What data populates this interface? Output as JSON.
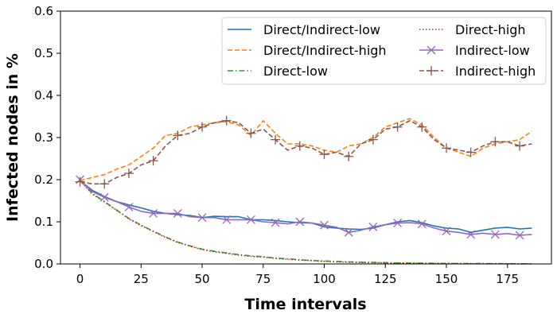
{
  "chart_data": {
    "type": "line",
    "title": "",
    "xlabel": "Time intervals",
    "ylabel": "Infected nodes in %",
    "xlim": [
      -8,
      193
    ],
    "ylim": [
      0,
      0.6
    ],
    "xticks": [
      0,
      25,
      50,
      75,
      100,
      125,
      150,
      175
    ],
    "yticks": [
      0.0,
      0.1,
      0.2,
      0.3,
      0.4,
      0.5,
      0.6
    ],
    "ytick_labels": [
      "0.0",
      "0.1",
      "0.2",
      "0.3",
      "0.4",
      "0.5",
      "0.6"
    ],
    "grid": false,
    "legend_placement": "upper-right",
    "legend_columns": 2,
    "series": [
      {
        "name": "Direct/Indirect-low",
        "color": "#1f77b4",
        "linestyle": "solid",
        "marker": "none",
        "x": [
          0,
          5,
          10,
          15,
          20,
          25,
          30,
          35,
          40,
          45,
          50,
          55,
          60,
          65,
          70,
          75,
          80,
          85,
          90,
          95,
          100,
          105,
          110,
          115,
          120,
          125,
          130,
          135,
          140,
          145,
          150,
          155,
          160,
          165,
          170,
          175,
          180,
          185
        ],
        "y": [
          0.198,
          0.175,
          0.16,
          0.148,
          0.14,
          0.133,
          0.125,
          0.12,
          0.117,
          0.115,
          0.11,
          0.113,
          0.112,
          0.112,
          0.105,
          0.105,
          0.103,
          0.1,
          0.098,
          0.097,
          0.088,
          0.085,
          0.083,
          0.082,
          0.085,
          0.093,
          0.1,
          0.103,
          0.098,
          0.09,
          0.085,
          0.083,
          0.075,
          0.08,
          0.085,
          0.087,
          0.083,
          0.085
        ]
      },
      {
        "name": "Direct/Indirect-high",
        "color": "#ff7f0e",
        "linestyle": "dashed",
        "marker": "none",
        "x": [
          0,
          5,
          10,
          15,
          20,
          25,
          30,
          35,
          40,
          45,
          50,
          55,
          60,
          65,
          70,
          75,
          80,
          85,
          90,
          95,
          100,
          105,
          110,
          115,
          120,
          125,
          130,
          135,
          140,
          145,
          150,
          155,
          160,
          165,
          170,
          175,
          180,
          185
        ],
        "y": [
          0.198,
          0.205,
          0.212,
          0.225,
          0.235,
          0.255,
          0.275,
          0.305,
          0.31,
          0.325,
          0.33,
          0.335,
          0.338,
          0.33,
          0.305,
          0.34,
          0.31,
          0.285,
          0.285,
          0.28,
          0.27,
          0.265,
          0.28,
          0.285,
          0.3,
          0.325,
          0.335,
          0.345,
          0.33,
          0.3,
          0.275,
          0.265,
          0.255,
          0.275,
          0.285,
          0.29,
          0.295,
          0.315
        ]
      },
      {
        "name": "Direct-low",
        "color": "#2ca02c",
        "linestyle": "dashdot",
        "marker": "none",
        "x": [
          0,
          5,
          10,
          15,
          20,
          25,
          30,
          35,
          40,
          45,
          50,
          55,
          60,
          65,
          70,
          75,
          80,
          85,
          90,
          95,
          100,
          105,
          110,
          115,
          120,
          125,
          130,
          135,
          140,
          145,
          150,
          155,
          160,
          165,
          170,
          175,
          180,
          185
        ],
        "y": [
          0.198,
          0.168,
          0.148,
          0.128,
          0.108,
          0.092,
          0.078,
          0.064,
          0.052,
          0.043,
          0.035,
          0.03,
          0.026,
          0.022,
          0.019,
          0.017,
          0.014,
          0.012,
          0.01,
          0.008,
          0.007,
          0.006,
          0.005,
          0.004,
          0.0035,
          0.003,
          0.0025,
          0.002,
          0.002,
          0.0015,
          0.0012,
          0.001,
          0.001,
          0.0008,
          0.0006,
          0.0005,
          0.0004,
          0.0003
        ]
      },
      {
        "name": "Direct-high",
        "color": "#d62728",
        "linestyle": "dotted",
        "marker": "none",
        "x": [
          0,
          5,
          10,
          15,
          20,
          25,
          30,
          35,
          40,
          45,
          50,
          55,
          60,
          65,
          70,
          75,
          80,
          85,
          90,
          95,
          100,
          105,
          110,
          115,
          120,
          125,
          130,
          135,
          140,
          145,
          150,
          155,
          160,
          165,
          170,
          175,
          180,
          185
        ],
        "y": [
          0.198,
          0.166,
          0.147,
          0.127,
          0.107,
          0.091,
          0.077,
          0.063,
          0.051,
          0.042,
          0.034,
          0.029,
          0.025,
          0.021,
          0.018,
          0.016,
          0.013,
          0.011,
          0.009,
          0.008,
          0.006,
          0.005,
          0.004,
          0.0035,
          0.003,
          0.0025,
          0.002,
          0.0018,
          0.0015,
          0.0012,
          0.001,
          0.0008,
          0.0007,
          0.0006,
          0.0005,
          0.0004,
          0.0003,
          0.0002
        ]
      },
      {
        "name": "Indirect-low",
        "color": "#9467bd",
        "linestyle": "solid",
        "marker": "x",
        "x": [
          0,
          5,
          10,
          15,
          20,
          25,
          30,
          35,
          40,
          45,
          50,
          55,
          60,
          65,
          70,
          75,
          80,
          85,
          90,
          95,
          100,
          105,
          110,
          115,
          120,
          125,
          130,
          135,
          140,
          145,
          150,
          155,
          160,
          165,
          170,
          175,
          180,
          185
        ],
        "y": [
          0.2,
          0.172,
          0.158,
          0.148,
          0.135,
          0.125,
          0.12,
          0.12,
          0.12,
          0.112,
          0.11,
          0.11,
          0.105,
          0.105,
          0.105,
          0.1,
          0.098,
          0.095,
          0.1,
          0.097,
          0.092,
          0.087,
          0.075,
          0.08,
          0.088,
          0.093,
          0.097,
          0.098,
          0.095,
          0.085,
          0.078,
          0.075,
          0.07,
          0.073,
          0.07,
          0.072,
          0.068,
          0.07
        ]
      },
      {
        "name": "Indirect-high",
        "color": "#8c564b",
        "linestyle": "dashed",
        "marker": "+",
        "x": [
          0,
          5,
          10,
          15,
          20,
          25,
          30,
          35,
          40,
          45,
          50,
          55,
          60,
          65,
          70,
          75,
          80,
          85,
          90,
          95,
          100,
          105,
          110,
          115,
          120,
          125,
          130,
          135,
          140,
          145,
          150,
          155,
          160,
          165,
          170,
          175,
          180,
          185
        ],
        "y": [
          0.195,
          0.19,
          0.19,
          0.205,
          0.215,
          0.235,
          0.245,
          0.28,
          0.305,
          0.31,
          0.325,
          0.335,
          0.34,
          0.335,
          0.31,
          0.32,
          0.295,
          0.27,
          0.28,
          0.275,
          0.26,
          0.265,
          0.255,
          0.285,
          0.295,
          0.32,
          0.325,
          0.34,
          0.325,
          0.295,
          0.275,
          0.27,
          0.265,
          0.28,
          0.29,
          0.29,
          0.28,
          0.285
        ]
      }
    ]
  }
}
